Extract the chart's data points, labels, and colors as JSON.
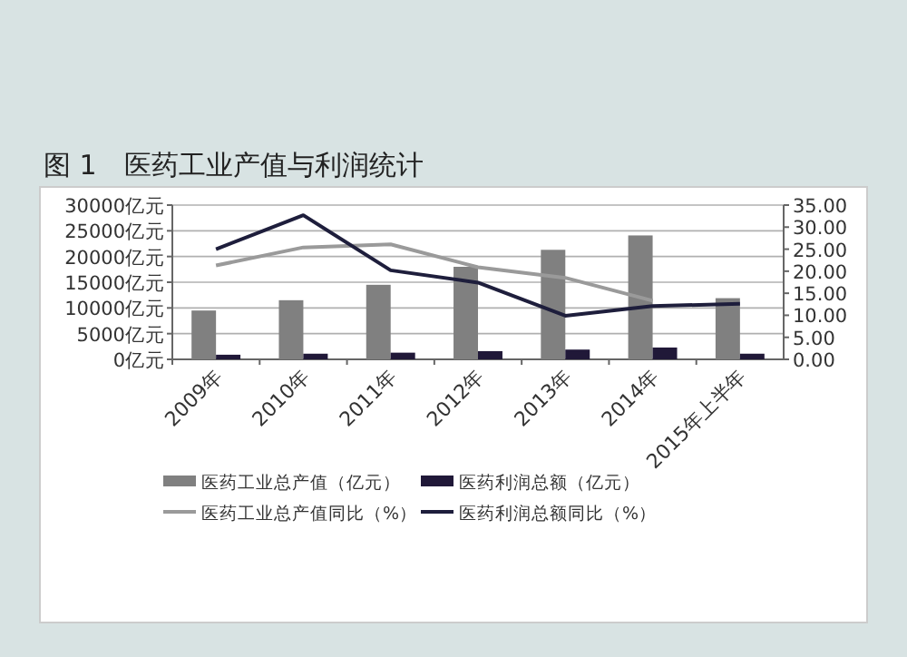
{
  "chart_data": {
    "type": "bar",
    "title": "图 1　医药工业产值与利润统计",
    "categories": [
      "2009年",
      "2010年",
      "2011年",
      "2012年",
      "2013年",
      "2014年",
      "2015年上半年"
    ],
    "series": [
      {
        "name": "医药工业总产值（亿元）",
        "color": "#808080",
        "values": [
          9500,
          11500,
          14500,
          18000,
          21300,
          24100,
          11900
        ]
      },
      {
        "name": "医药利润总额（亿元）",
        "color": "#201838",
        "values": [
          900,
          1100,
          1300,
          1600,
          1900,
          2300,
          1100
        ]
      },
      {
        "name": "医药工业总产值同比（%）",
        "type": "line",
        "axis": "y2",
        "color": "#9a9a9a",
        "values": [
          21.3,
          25.4,
          26.1,
          20.9,
          18.5,
          13.3,
          null
        ]
      },
      {
        "name": "医药利润总额同比（%）",
        "type": "line",
        "axis": "y2",
        "color": "#1e1e3c",
        "values": [
          25.0,
          32.7,
          20.2,
          17.4,
          9.9,
          12.1,
          12.6
        ]
      }
    ],
    "ylim": [
      0,
      30000
    ],
    "yticks": [
      {
        "value": 0,
        "label": "0亿元"
      },
      {
        "value": 5000,
        "label": "5000亿元"
      },
      {
        "value": 10000,
        "label": "10000亿元"
      },
      {
        "value": 15000,
        "label": "15000亿元"
      },
      {
        "value": 20000,
        "label": "20000亿元"
      },
      {
        "value": 25000,
        "label": "25000亿元"
      },
      {
        "value": 30000,
        "label": "30000亿元"
      }
    ],
    "y2lim": [
      0,
      35
    ],
    "y2ticks": [
      {
        "value": 0,
        "label": "0.00"
      },
      {
        "value": 5,
        "label": "5.00"
      },
      {
        "value": 10,
        "label": "10.00"
      },
      {
        "value": 15,
        "label": "15.00"
      },
      {
        "value": 20,
        "label": "20.00"
      },
      {
        "value": 25,
        "label": "25.00"
      },
      {
        "value": 30,
        "label": "30.00"
      },
      {
        "value": 35,
        "label": "35.00"
      }
    ],
    "grid": "y",
    "legend": "bottom",
    "marker": "none",
    "line_style": "solid"
  }
}
